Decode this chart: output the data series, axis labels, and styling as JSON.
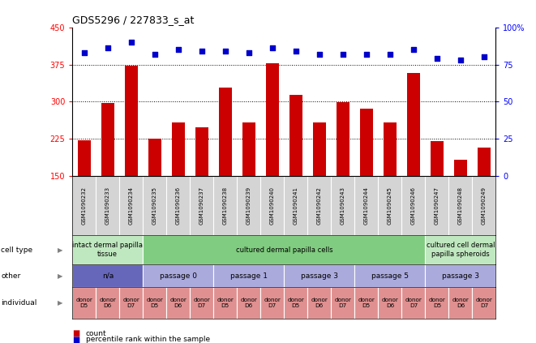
{
  "title": "GDS5296 / 227833_s_at",
  "samples": [
    "GSM1090232",
    "GSM1090233",
    "GSM1090234",
    "GSM1090235",
    "GSM1090236",
    "GSM1090237",
    "GSM1090238",
    "GSM1090239",
    "GSM1090240",
    "GSM1090241",
    "GSM1090242",
    "GSM1090243",
    "GSM1090244",
    "GSM1090245",
    "GSM1090246",
    "GSM1090247",
    "GSM1090248",
    "GSM1090249"
  ],
  "counts": [
    222,
    297,
    373,
    225,
    257,
    248,
    328,
    257,
    378,
    313,
    257,
    299,
    285,
    257,
    358,
    220,
    183,
    207
  ],
  "percentiles": [
    83,
    86,
    90,
    82,
    85,
    84,
    84,
    83,
    86,
    84,
    82,
    82,
    82,
    82,
    85,
    79,
    78,
    80
  ],
  "ylim_left": [
    150,
    450
  ],
  "ylim_right": [
    0,
    100
  ],
  "yticks_left": [
    150,
    225,
    300,
    375,
    450
  ],
  "yticks_right": [
    0,
    25,
    50,
    75,
    100
  ],
  "bar_color": "#cc0000",
  "dot_color": "#0000cc",
  "background_color": "#ffffff",
  "xtick_bg": "#d4d4d4",
  "cell_type_row": {
    "groups": [
      {
        "label": "intact dermal papilla\ntissue",
        "start": 0,
        "end": 3,
        "color": "#c0e8c0"
      },
      {
        "label": "cultured dermal papilla cells",
        "start": 3,
        "end": 15,
        "color": "#80cc80"
      },
      {
        "label": "cultured cell dermal\npapilla spheroids",
        "start": 15,
        "end": 18,
        "color": "#c0e8c0"
      }
    ]
  },
  "other_row": {
    "groups": [
      {
        "label": "n/a",
        "start": 0,
        "end": 3,
        "color": "#6666bb"
      },
      {
        "label": "passage 0",
        "start": 3,
        "end": 6,
        "color": "#aaaadd"
      },
      {
        "label": "passage 1",
        "start": 6,
        "end": 9,
        "color": "#aaaadd"
      },
      {
        "label": "passage 3",
        "start": 9,
        "end": 12,
        "color": "#aaaadd"
      },
      {
        "label": "passage 5",
        "start": 12,
        "end": 15,
        "color": "#aaaadd"
      },
      {
        "label": "passage 3",
        "start": 15,
        "end": 18,
        "color": "#aaaadd"
      }
    ]
  },
  "individual_row": {
    "groups": [
      {
        "label": "donor\nD5",
        "start": 0,
        "end": 1,
        "color": "#e09090"
      },
      {
        "label": "donor\nD6",
        "start": 1,
        "end": 2,
        "color": "#e09090"
      },
      {
        "label": "donor\nD7",
        "start": 2,
        "end": 3,
        "color": "#e09090"
      },
      {
        "label": "donor\nD5",
        "start": 3,
        "end": 4,
        "color": "#e09090"
      },
      {
        "label": "donor\nD6",
        "start": 4,
        "end": 5,
        "color": "#e09090"
      },
      {
        "label": "donor\nD7",
        "start": 5,
        "end": 6,
        "color": "#e09090"
      },
      {
        "label": "donor\nD5",
        "start": 6,
        "end": 7,
        "color": "#e09090"
      },
      {
        "label": "donor\nD6",
        "start": 7,
        "end": 8,
        "color": "#e09090"
      },
      {
        "label": "donor\nD7",
        "start": 8,
        "end": 9,
        "color": "#e09090"
      },
      {
        "label": "donor\nD5",
        "start": 9,
        "end": 10,
        "color": "#e09090"
      },
      {
        "label": "donor\nD6",
        "start": 10,
        "end": 11,
        "color": "#e09090"
      },
      {
        "label": "donor\nD7",
        "start": 11,
        "end": 12,
        "color": "#e09090"
      },
      {
        "label": "donor\nD5",
        "start": 12,
        "end": 13,
        "color": "#e09090"
      },
      {
        "label": "donor\nD6",
        "start": 13,
        "end": 14,
        "color": "#e09090"
      },
      {
        "label": "donor\nD7",
        "start": 14,
        "end": 15,
        "color": "#e09090"
      },
      {
        "label": "donor\nD5",
        "start": 15,
        "end": 16,
        "color": "#e09090"
      },
      {
        "label": "donor\nD6",
        "start": 16,
        "end": 17,
        "color": "#e09090"
      },
      {
        "label": "donor\nD7",
        "start": 17,
        "end": 18,
        "color": "#e09090"
      }
    ]
  },
  "row_labels": [
    "cell type",
    "other",
    "individual"
  ],
  "hgrid_values": [
    225,
    300,
    375
  ]
}
